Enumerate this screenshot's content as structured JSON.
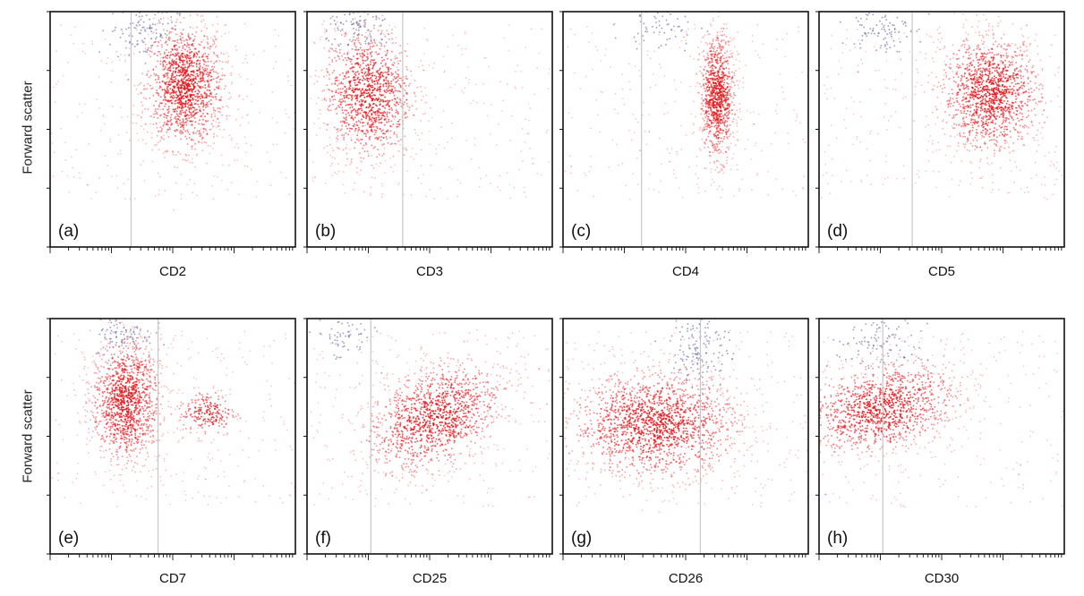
{
  "figure": {
    "y_axis_label": "Forward scatter"
  },
  "colors": {
    "positive_cells": "#e8161b",
    "negative_cells": "#4a4e8c",
    "gate_line": "#c8c8c8",
    "frame": "#111111"
  },
  "chart_data": [
    {
      "type": "scatter",
      "panel": "(a)",
      "xlabel": "CD2",
      "ylabel": "Forward scatter",
      "x_scale": "log",
      "gate": 0.33,
      "clusters": [
        {
          "color": "red",
          "cx": 0.55,
          "cy": 0.68,
          "sx": 0.08,
          "sy": 0.13,
          "n": 1300
        },
        {
          "color": "blue",
          "cx": 0.38,
          "cy": 0.92,
          "sx": 0.07,
          "sy": 0.06,
          "n": 120
        }
      ]
    },
    {
      "type": "scatter",
      "panel": "(b)",
      "xlabel": "CD3",
      "ylabel": "",
      "x_scale": "log",
      "gate": 0.39,
      "clusters": [
        {
          "color": "red",
          "cx": 0.25,
          "cy": 0.65,
          "sx": 0.09,
          "sy": 0.14,
          "n": 1100
        },
        {
          "color": "blue",
          "cx": 0.22,
          "cy": 0.93,
          "sx": 0.07,
          "sy": 0.05,
          "n": 100
        }
      ]
    },
    {
      "type": "scatter",
      "panel": "(c)",
      "xlabel": "CD4",
      "ylabel": "",
      "x_scale": "log",
      "gate": 0.32,
      "clusters": [
        {
          "color": "red",
          "cx": 0.63,
          "cy": 0.64,
          "sx": 0.035,
          "sy": 0.13,
          "n": 900
        },
        {
          "color": "blue",
          "cx": 0.4,
          "cy": 0.93,
          "sx": 0.08,
          "sy": 0.05,
          "n": 60
        }
      ]
    },
    {
      "type": "scatter",
      "panel": "(d)",
      "xlabel": "CD5",
      "ylabel": "",
      "x_scale": "log",
      "gate": 0.38,
      "clusters": [
        {
          "color": "red",
          "cx": 0.7,
          "cy": 0.65,
          "sx": 0.1,
          "sy": 0.12,
          "n": 1300
        },
        {
          "color": "blue",
          "cx": 0.25,
          "cy": 0.93,
          "sx": 0.06,
          "sy": 0.05,
          "n": 90
        }
      ]
    },
    {
      "type": "scatter",
      "panel": "(e)",
      "xlabel": "CD7",
      "ylabel": "Forward scatter",
      "x_scale": "log",
      "gate": 0.44,
      "clusters": [
        {
          "color": "red",
          "cx": 0.31,
          "cy": 0.65,
          "sx": 0.07,
          "sy": 0.13,
          "n": 1200
        },
        {
          "color": "red",
          "cx": 0.64,
          "cy": 0.6,
          "sx": 0.06,
          "sy": 0.05,
          "n": 200
        },
        {
          "color": "blue",
          "cx": 0.3,
          "cy": 0.93,
          "sx": 0.06,
          "sy": 0.05,
          "n": 90
        }
      ]
    },
    {
      "type": "scatter",
      "panel": "(f)",
      "xlabel": "CD25",
      "ylabel": "Forward scatter",
      "x_scale": "log",
      "gate": 0.26,
      "clusters": [
        {
          "color": "red",
          "cx": 0.52,
          "cy": 0.58,
          "sx": 0.15,
          "sy": 0.1,
          "n": 1200,
          "rot": 0.6
        },
        {
          "color": "blue",
          "cx": 0.15,
          "cy": 0.92,
          "sx": 0.06,
          "sy": 0.05,
          "n": 60
        }
      ]
    },
    {
      "type": "scatter",
      "panel": "(g)",
      "xlabel": "CD26",
      "ylabel": "",
      "x_scale": "log",
      "gate": 0.56,
      "clusters": [
        {
          "color": "red",
          "cx": 0.38,
          "cy": 0.55,
          "sx": 0.17,
          "sy": 0.11,
          "n": 1600
        },
        {
          "color": "blue",
          "cx": 0.56,
          "cy": 0.88,
          "sx": 0.06,
          "sy": 0.09,
          "n": 150
        }
      ]
    },
    {
      "type": "scatter",
      "panel": "(h)",
      "xlabel": "CD30",
      "ylabel": "",
      "x_scale": "log",
      "gate": 0.26,
      "clusters": [
        {
          "color": "red",
          "cx": 0.25,
          "cy": 0.62,
          "sx": 0.16,
          "sy": 0.09,
          "n": 1200,
          "rot": 0.25
        },
        {
          "color": "blue",
          "cx": 0.25,
          "cy": 0.9,
          "sx": 0.1,
          "sy": 0.06,
          "n": 100
        }
      ]
    }
  ]
}
